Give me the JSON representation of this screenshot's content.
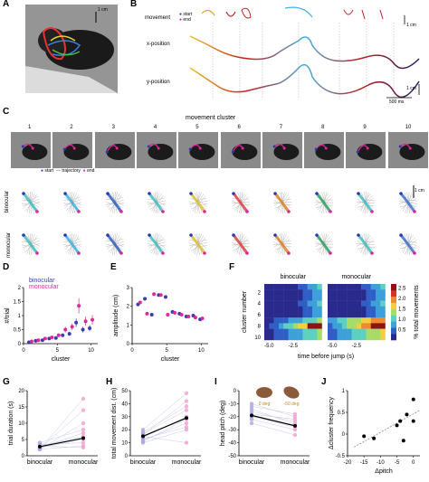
{
  "panel_letters": [
    "A",
    "B",
    "C",
    "D",
    "E",
    "F",
    "G",
    "H",
    "I",
    "J"
  ],
  "panelA": {
    "scalebar": "1 cm"
  },
  "panelB": {
    "row_labels": [
      "movement",
      "x-position",
      "y-position"
    ],
    "legend": {
      "start": "start",
      "end": "end"
    },
    "scalebar_cm": "1 cm",
    "scalebar_time": "500 ms",
    "scalebar_cm2": "1 cm"
  },
  "panelC": {
    "title": "movement cluster",
    "clusters": [
      "1",
      "2",
      "3",
      "4",
      "5",
      "6",
      "7",
      "8",
      "9",
      "10"
    ],
    "legend": {
      "start": "start",
      "trajectory": "trajectory",
      "end": "end"
    },
    "row_labels": [
      "binocular",
      "monocular"
    ],
    "scalebar": "1 cm"
  },
  "panelD": {
    "ylabel": "#/trial",
    "xlabel": "cluster",
    "legend": [
      "binocular",
      "monocular"
    ],
    "yticks": [
      "0",
      "0.5",
      "1",
      "1.5",
      "2"
    ],
    "xticks": [
      "0",
      "5",
      "10"
    ]
  },
  "panelE": {
    "ylabel": "amplitude (cm)",
    "xlabel": "cluster",
    "yticks": [
      "0",
      "1",
      "2",
      "3"
    ],
    "xticks": [
      "0",
      "5",
      "10"
    ]
  },
  "panelF": {
    "titles": [
      "binocular",
      "monocular"
    ],
    "ylabel": "cluster number",
    "xlabel": "time before jump (s)",
    "yticks": [
      "2",
      "4",
      "6",
      "8",
      "10"
    ],
    "xticks": [
      "-5.0",
      "-2.5"
    ],
    "cbar_label": "% total movements",
    "cbar_ticks": [
      "0.5",
      "1.0",
      "1.5",
      "2.0",
      "2.5"
    ]
  },
  "panelG": {
    "ylabel": "trial duration (s)",
    "yticks": [
      "0",
      "5",
      "10",
      "15",
      "20"
    ],
    "xticks": [
      "binocular",
      "monocular"
    ]
  },
  "panelH": {
    "ylabel": "total movement dist. (cm)",
    "yticks": [
      "0",
      "10",
      "20",
      "30",
      "40",
      "50"
    ],
    "xticks": [
      "binocular",
      "monocular"
    ]
  },
  "panelI": {
    "ylabel": "head pitch (deg)",
    "yticks": [
      "0",
      "-10",
      "-20",
      "-30",
      "-40",
      "-50"
    ],
    "xticks": [
      "binocular",
      "monocular"
    ],
    "insets": [
      "0 deg",
      "-50 deg"
    ]
  },
  "panelJ": {
    "ylabel": "Δcluster frequency",
    "xlabel": "Δpitch",
    "yticks": [
      "-0.5",
      "0",
      "0.5",
      "1"
    ],
    "xticks": [
      "-20",
      "-15",
      "-10",
      "-5",
      "0"
    ]
  },
  "colors": {
    "binocular": "#3b3bb0",
    "monocular": "#e0269b"
  },
  "chart_data": [
    {
      "type": "scatter",
      "panel": "D",
      "x": [
        1,
        2,
        3,
        4,
        5,
        6,
        7,
        8,
        9,
        10
      ],
      "series": [
        {
          "name": "binocular",
          "values": [
            0.05,
            0.1,
            0.12,
            0.18,
            0.2,
            0.3,
            0.35,
            0.75,
            0.5,
            0.55
          ]
        },
        {
          "name": "monocular",
          "values": [
            0.08,
            0.12,
            0.18,
            0.22,
            0.3,
            0.5,
            0.6,
            1.35,
            0.8,
            0.85
          ]
        }
      ],
      "xlabel": "cluster",
      "ylabel": "#/trial",
      "ylim": [
        0,
        2
      ]
    },
    {
      "type": "scatter",
      "panel": "E",
      "x": [
        1,
        2,
        3,
        4,
        5,
        6,
        7,
        8,
        9,
        10
      ],
      "series": [
        {
          "name": "binocular",
          "values": [
            2.1,
            2.4,
            1.55,
            2.6,
            2.5,
            1.7,
            1.6,
            1.45,
            1.5,
            1.3
          ]
        },
        {
          "name": "monocular",
          "values": [
            2.2,
            1.6,
            2.65,
            2.6,
            1.55,
            1.65,
            1.55,
            1.45,
            1.4,
            1.35
          ]
        }
      ],
      "xlabel": "cluster",
      "ylabel": "amplitude (cm)",
      "ylim": [
        0,
        3
      ]
    },
    {
      "type": "scatter",
      "panel": "G",
      "categories": [
        "binocular",
        "monocular"
      ],
      "series": [
        {
          "name": "mean",
          "values": [
            2.8,
            5.4
          ]
        }
      ],
      "ylabel": "trial duration (s)",
      "ylim": [
        0,
        20
      ]
    },
    {
      "type": "scatter",
      "panel": "H",
      "categories": [
        "binocular",
        "monocular"
      ],
      "series": [
        {
          "name": "mean",
          "values": [
            15,
            29
          ]
        }
      ],
      "ylabel": "total movement dist. (cm)",
      "ylim": [
        0,
        50
      ]
    },
    {
      "type": "scatter",
      "panel": "I",
      "categories": [
        "binocular",
        "monocular"
      ],
      "series": [
        {
          "name": "mean",
          "values": [
            -19,
            -27
          ]
        }
      ],
      "ylabel": "head pitch (deg)",
      "ylim": [
        -50,
        0
      ]
    },
    {
      "type": "scatter",
      "panel": "J",
      "x": [
        -15,
        -12,
        -5,
        -4,
        -3,
        -2,
        0,
        0
      ],
      "y": [
        -0.05,
        -0.1,
        0.2,
        0.3,
        -0.15,
        0.45,
        0.8,
        0.3
      ],
      "xlabel": "Δpitch",
      "ylabel": "Δcluster frequency",
      "xlim": [
        -20,
        2
      ],
      "ylim": [
        -0.5,
        1
      ]
    }
  ]
}
